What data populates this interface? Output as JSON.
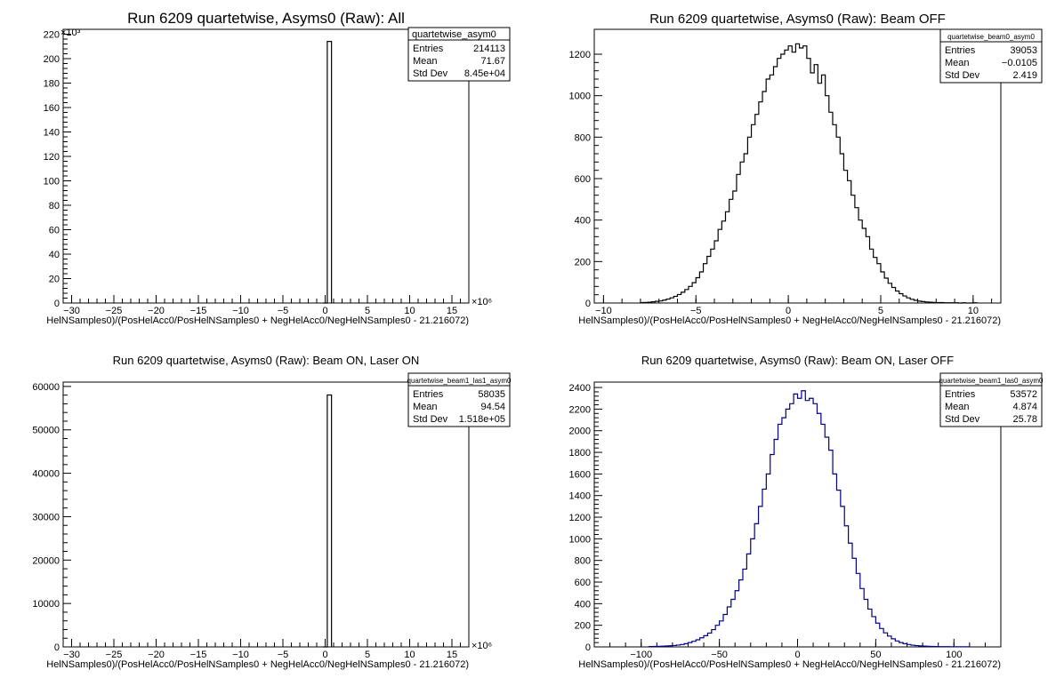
{
  "chart_data": [
    {
      "type": "histogram",
      "title": "Run 6209 quartetwise, Asyms0 (Raw): All",
      "xlabel": "HelNSamples0)/(PosHelAcc0/PosHelNSamples0 + NegHelAcc0/NegHelNSamples0 - 21.216072)",
      "ylabel": "",
      "xlim": [
        -31,
        17
      ],
      "ylim": [
        0,
        224
      ],
      "x_ticks": [
        -30,
        -25,
        -20,
        -15,
        -10,
        -5,
        0,
        5,
        10,
        15
      ],
      "y_ticks": [
        0,
        20,
        40,
        60,
        80,
        100,
        120,
        140,
        160,
        180,
        200,
        220
      ],
      "x_exponent": "×10⁶",
      "y_exponent": "×10³",
      "bins": {
        "x": [
          -0.25,
          0.25
        ],
        "y": [
          0,
          214.1
        ]
      },
      "stats": {
        "name": "quartetwise_asym0",
        "entries_label": "Entries",
        "entries": "214113",
        "mean_label": "Mean",
        "mean": "71.67",
        "std_label": "Std Dev",
        "std": "8.45e+04"
      }
    },
    {
      "type": "histogram",
      "title": "Run 6209 quartetwise, Asyms0 (Raw): Beam OFF",
      "xlabel": "HelNSamples0)/(PosHelAcc0/PosHelNSamples0 + NegHelAcc0/NegHelNSamples0 - 21.216072)",
      "ylabel": "",
      "xlim": [
        -10.5,
        11.5
      ],
      "ylim": [
        0,
        1320
      ],
      "x_ticks": [
        -10,
        -5,
        0,
        5,
        10
      ],
      "y_ticks": [
        0,
        200,
        400,
        600,
        800,
        1000,
        1200
      ],
      "x_exponent": "",
      "y_exponent": "",
      "bins": {
        "x": [
          -8.0,
          -7.8,
          -7.6,
          -7.4,
          -7.2,
          -7.0,
          -6.8,
          -6.6,
          -6.4,
          -6.2,
          -6.0,
          -5.8,
          -5.6,
          -5.4,
          -5.2,
          -5.0,
          -4.8,
          -4.6,
          -4.4,
          -4.2,
          -4.0,
          -3.8,
          -3.6,
          -3.4,
          -3.2,
          -3.0,
          -2.8,
          -2.6,
          -2.4,
          -2.2,
          -2.0,
          -1.8,
          -1.6,
          -1.4,
          -1.2,
          -1.0,
          -0.8,
          -0.6,
          -0.4,
          -0.2,
          0.0,
          0.2,
          0.4,
          0.6,
          0.8,
          1.0,
          1.2,
          1.4,
          1.6,
          1.8,
          2.0,
          2.2,
          2.4,
          2.6,
          2.8,
          3.0,
          3.2,
          3.4,
          3.6,
          3.8,
          4.0,
          4.2,
          4.4,
          4.6,
          4.8,
          5.0,
          5.2,
          5.4,
          5.6,
          5.8,
          6.0,
          6.2,
          6.4,
          6.6,
          6.8,
          7.0,
          7.2,
          7.4,
          7.6,
          7.8,
          8.0,
          8.2,
          8.4,
          8.6,
          8.8,
          9.0,
          9.2,
          9.4,
          9.6,
          9.8,
          10.0
        ],
        "y": [
          2,
          3,
          4,
          6,
          8,
          10,
          14,
          19,
          25,
          32,
          41,
          52,
          65,
          80,
          98,
          122,
          150,
          190,
          225,
          260,
          300,
          355,
          395,
          440,
          500,
          540,
          620,
          680,
          720,
          800,
          860,
          910,
          970,
          1020,
          1080,
          1100,
          1140,
          1180,
          1200,
          1220,
          1240,
          1210,
          1250,
          1230,
          1240,
          1180,
          1110,
          1150,
          1060,
          1100,
          1000,
          920,
          860,
          800,
          720,
          640,
          590,
          520,
          460,
          400,
          360,
          320,
          260,
          220,
          190,
          150,
          120,
          95,
          75,
          58,
          45,
          34,
          25,
          18,
          13,
          9,
          7,
          5,
          4,
          3,
          2,
          2,
          1,
          1,
          1,
          1,
          0,
          1,
          0,
          0,
          1
        ]
      },
      "stats": {
        "name": "quartetwise_beam0_asym0",
        "entries_label": "Entries",
        "entries": "39053",
        "mean_label": "Mean",
        "mean": "−0.0105",
        "std_label": "Std Dev",
        "std": "2.419"
      }
    },
    {
      "type": "histogram",
      "title": "Run 6209 quartetwise, Asyms0 (Raw): Beam ON, Laser ON",
      "xlabel": "HelNSamples0)/(PosHelAcc0/PosHelNSamples0 + NegHelAcc0/NegHelNSamples0 - 21.216072)",
      "ylabel": "",
      "xlim": [
        -31,
        17
      ],
      "ylim": [
        0,
        61000
      ],
      "x_ticks": [
        -30,
        -25,
        -20,
        -15,
        -10,
        -5,
        0,
        5,
        10,
        15
      ],
      "y_ticks": [
        0,
        10000,
        20000,
        30000,
        40000,
        50000,
        60000
      ],
      "x_exponent": "×10⁶",
      "y_exponent": "",
      "bins": {
        "x": [
          -0.25,
          0.25
        ],
        "y": [
          0,
          58035
        ]
      },
      "stats": {
        "name": "quartetwise_beam1_las1_asym0",
        "entries_label": "Entries",
        "entries": "58035",
        "mean_label": "Mean",
        "mean": "94.54",
        "std_label": "Std Dev",
        "std": "1.518e+05"
      }
    },
    {
      "type": "histogram",
      "title": "Run 6209 quartetwise, Asyms0 (Raw): Beam ON, Laser OFF",
      "xlabel": "HelNSamples0)/(PosHelAcc0/PosHelNSamples0 + NegHelAcc0/NegHelNSamples0 - 21.216072)",
      "ylabel": "",
      "xlim": [
        -130,
        130
      ],
      "ylim": [
        0,
        2450
      ],
      "x_ticks": [
        -100,
        -50,
        0,
        50,
        100
      ],
      "y_ticks": [
        0,
        200,
        400,
        600,
        800,
        1000,
        1200,
        1400,
        1600,
        1800,
        2000,
        2200,
        2400
      ],
      "x_exponent": "",
      "y_exponent": "",
      "bins": {
        "x": [
          -95,
          -92.5,
          -90,
          -87.5,
          -85,
          -82.5,
          -80,
          -77.5,
          -75,
          -72.5,
          -70,
          -67.5,
          -65,
          -62.5,
          -60,
          -57.5,
          -55,
          -52.5,
          -50,
          -47.5,
          -45,
          -42.5,
          -40,
          -37.5,
          -35,
          -32.5,
          -30,
          -27.5,
          -25,
          -22.5,
          -20,
          -17.5,
          -15,
          -12.5,
          -10,
          -7.5,
          -5,
          -2.5,
          0,
          2.5,
          5,
          7.5,
          10,
          12.5,
          15,
          17.5,
          20,
          22.5,
          25,
          27.5,
          30,
          32.5,
          35,
          37.5,
          40,
          42.5,
          45,
          47.5,
          50,
          52.5,
          55,
          57.5,
          60,
          62.5,
          65,
          67.5,
          70,
          72.5,
          75,
          77.5,
          80,
          82.5,
          85,
          87.5,
          90,
          92.5,
          95,
          97.5,
          100,
          102.5,
          105,
          107.5
        ],
        "y": [
          3,
          4,
          5,
          6,
          8,
          10,
          13,
          17,
          22,
          30,
          40,
          52,
          66,
          84,
          104,
          128,
          160,
          200,
          240,
          300,
          370,
          440,
          520,
          620,
          720,
          860,
          1000,
          1140,
          1300,
          1460,
          1600,
          1780,
          1920,
          2060,
          2120,
          2200,
          2250,
          2340,
          2300,
          2370,
          2280,
          2300,
          2250,
          2160,
          2060,
          1940,
          1820,
          1600,
          1450,
          1300,
          1120,
          960,
          820,
          680,
          540,
          440,
          350,
          280,
          220,
          170,
          130,
          100,
          75,
          55,
          40,
          30,
          22,
          16,
          12,
          9,
          7,
          5,
          4,
          3,
          2,
          2,
          2,
          1,
          1,
          1,
          1,
          1
        ]
      },
      "stats": {
        "name": "quartetwise_beam1_las0_asym0",
        "entries_label": "Entries",
        "entries": "53572",
        "mean_label": "Mean",
        "mean": "4.874",
        "std_label": "Std Dev",
        "std": "25.78"
      }
    }
  ]
}
